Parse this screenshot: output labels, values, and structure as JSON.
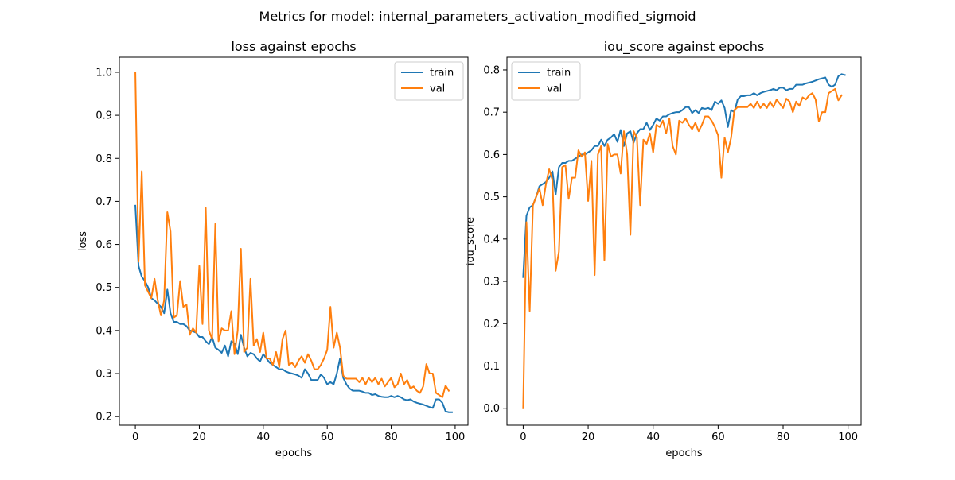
{
  "figure": {
    "suptitle": "Metrics for model: internal_parameters_activation_modified_sigmoid"
  },
  "colors": {
    "train": "#1f77b4",
    "val": "#ff7f0e"
  },
  "chart_data": [
    {
      "type": "line",
      "title": "loss against epochs",
      "xlabel": "epochs",
      "ylabel": "loss",
      "xlim": [
        -5,
        104
      ],
      "ylim": [
        0.18,
        1.035
      ],
      "xticks": [
        0,
        20,
        40,
        60,
        80,
        100
      ],
      "yticks": [
        0.2,
        0.3,
        0.4,
        0.5,
        0.6,
        0.7,
        0.8,
        0.9,
        1.0
      ],
      "ytick_labels": [
        "0.2",
        "0.3",
        "0.4",
        "0.5",
        "0.6",
        "0.7",
        "0.8",
        "0.9",
        "1.0"
      ],
      "legend_position": "top-right",
      "grid": false,
      "series": [
        {
          "name": "train",
          "color": "#1f77b4",
          "x_start": 0,
          "values": [
            0.69,
            0.55,
            0.525,
            0.515,
            0.5,
            0.475,
            0.47,
            0.462,
            0.455,
            0.44,
            0.495,
            0.44,
            0.42,
            0.42,
            0.415,
            0.415,
            0.41,
            0.4,
            0.398,
            0.395,
            0.385,
            0.385,
            0.375,
            0.368,
            0.385,
            0.36,
            0.355,
            0.348,
            0.365,
            0.34,
            0.375,
            0.37,
            0.345,
            0.39,
            0.36,
            0.34,
            0.348,
            0.345,
            0.335,
            0.328,
            0.345,
            0.335,
            0.325,
            0.32,
            0.315,
            0.31,
            0.31,
            0.305,
            0.302,
            0.3,
            0.298,
            0.295,
            0.29,
            0.31,
            0.3,
            0.285,
            0.285,
            0.285,
            0.298,
            0.29,
            0.275,
            0.28,
            0.275,
            0.3,
            0.335,
            0.29,
            0.275,
            0.265,
            0.26,
            0.26,
            0.26,
            0.258,
            0.255,
            0.255,
            0.25,
            0.252,
            0.248,
            0.246,
            0.245,
            0.245,
            0.248,
            0.245,
            0.248,
            0.245,
            0.24,
            0.238,
            0.24,
            0.235,
            0.232,
            0.23,
            0.228,
            0.225,
            0.222,
            0.22,
            0.24,
            0.24,
            0.232,
            0.212,
            0.21,
            0.21
          ]
        },
        {
          "name": "val",
          "color": "#ff7f0e",
          "x_start": 0,
          "values": [
            0.998,
            0.56,
            0.77,
            0.505,
            0.49,
            0.475,
            0.52,
            0.47,
            0.435,
            0.47,
            0.675,
            0.63,
            0.43,
            0.435,
            0.515,
            0.455,
            0.46,
            0.39,
            0.405,
            0.395,
            0.55,
            0.415,
            0.685,
            0.4,
            0.38,
            0.648,
            0.375,
            0.405,
            0.4,
            0.4,
            0.445,
            0.345,
            0.4,
            0.59,
            0.35,
            0.36,
            0.52,
            0.365,
            0.38,
            0.35,
            0.395,
            0.335,
            0.335,
            0.32,
            0.35,
            0.315,
            0.38,
            0.4,
            0.32,
            0.325,
            0.315,
            0.33,
            0.34,
            0.325,
            0.345,
            0.33,
            0.31,
            0.31,
            0.32,
            0.335,
            0.355,
            0.455,
            0.36,
            0.395,
            0.36,
            0.295,
            0.288,
            0.288,
            0.288,
            0.288,
            0.28,
            0.29,
            0.275,
            0.29,
            0.28,
            0.29,
            0.275,
            0.288,
            0.27,
            0.28,
            0.29,
            0.268,
            0.275,
            0.3,
            0.275,
            0.285,
            0.265,
            0.27,
            0.26,
            0.255,
            0.27,
            0.322,
            0.3,
            0.3,
            0.255,
            0.25,
            0.245,
            0.272,
            0.26
          ]
        }
      ]
    },
    {
      "type": "line",
      "title": "iou_score against epochs",
      "xlabel": "epochs",
      "ylabel": "iou_score",
      "xlim": [
        -5,
        104
      ],
      "ylim": [
        -0.04,
        0.83
      ],
      "xticks": [
        0,
        20,
        40,
        60,
        80,
        100
      ],
      "yticks": [
        0.0,
        0.1,
        0.2,
        0.3,
        0.4,
        0.5,
        0.6,
        0.7,
        0.8
      ],
      "ytick_labels": [
        "0.0",
        "0.1",
        "0.2",
        "0.3",
        "0.4",
        "0.5",
        "0.6",
        "0.7",
        "0.8"
      ],
      "legend_position": "top-left",
      "grid": false,
      "series": [
        {
          "name": "train",
          "color": "#1f77b4",
          "x_start": 0,
          "values": [
            0.31,
            0.455,
            0.475,
            0.48,
            0.5,
            0.525,
            0.53,
            0.535,
            0.545,
            0.56,
            0.505,
            0.57,
            0.58,
            0.58,
            0.585,
            0.585,
            0.59,
            0.595,
            0.6,
            0.6,
            0.605,
            0.61,
            0.62,
            0.62,
            0.635,
            0.62,
            0.635,
            0.64,
            0.648,
            0.63,
            0.658,
            0.62,
            0.65,
            0.655,
            0.628,
            0.65,
            0.66,
            0.66,
            0.675,
            0.658,
            0.67,
            0.685,
            0.68,
            0.69,
            0.69,
            0.695,
            0.698,
            0.7,
            0.7,
            0.705,
            0.712,
            0.712,
            0.698,
            0.705,
            0.698,
            0.71,
            0.708,
            0.71,
            0.705,
            0.725,
            0.72,
            0.728,
            0.71,
            0.665,
            0.705,
            0.7,
            0.73,
            0.738,
            0.738,
            0.74,
            0.74,
            0.745,
            0.74,
            0.745,
            0.748,
            0.75,
            0.752,
            0.755,
            0.752,
            0.758,
            0.758,
            0.752,
            0.755,
            0.755,
            0.765,
            0.765,
            0.765,
            0.768,
            0.77,
            0.772,
            0.775,
            0.778,
            0.78,
            0.782,
            0.765,
            0.76,
            0.765,
            0.785,
            0.79,
            0.788
          ]
        },
        {
          "name": "val",
          "color": "#ff7f0e",
          "x_start": 0,
          "values": [
            0.0,
            0.44,
            0.23,
            0.48,
            0.5,
            0.52,
            0.48,
            0.53,
            0.565,
            0.54,
            0.325,
            0.37,
            0.57,
            0.575,
            0.495,
            0.545,
            0.545,
            0.61,
            0.595,
            0.605,
            0.49,
            0.585,
            0.315,
            0.6,
            0.62,
            0.35,
            0.625,
            0.595,
            0.6,
            0.6,
            0.555,
            0.655,
            0.6,
            0.41,
            0.655,
            0.64,
            0.48,
            0.635,
            0.625,
            0.65,
            0.605,
            0.67,
            0.665,
            0.68,
            0.65,
            0.685,
            0.62,
            0.6,
            0.68,
            0.675,
            0.685,
            0.67,
            0.66,
            0.675,
            0.655,
            0.67,
            0.69,
            0.69,
            0.68,
            0.665,
            0.645,
            0.545,
            0.64,
            0.605,
            0.64,
            0.705,
            0.712,
            0.712,
            0.712,
            0.712,
            0.72,
            0.71,
            0.725,
            0.71,
            0.72,
            0.71,
            0.725,
            0.712,
            0.73,
            0.72,
            0.71,
            0.732,
            0.725,
            0.7,
            0.725,
            0.715,
            0.735,
            0.73,
            0.74,
            0.745,
            0.73,
            0.678,
            0.7,
            0.7,
            0.745,
            0.75,
            0.755,
            0.728,
            0.74
          ]
        }
      ]
    }
  ]
}
